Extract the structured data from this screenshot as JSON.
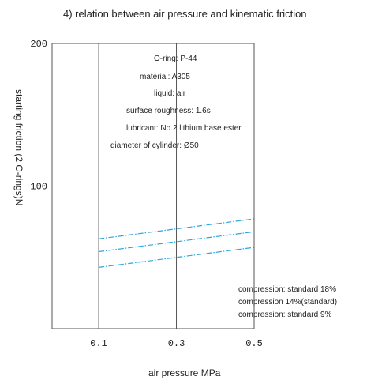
{
  "chart_data": {
    "type": "line",
    "title": "4) relation between air pressure and kinematic friction",
    "xlabel": "air pressure MPa",
    "ylabel": "starting friction (2 O-rings)N",
    "x_ticks": [
      "0.1",
      "0.3",
      "0.5"
    ],
    "y_ticks": [
      "200",
      "100"
    ],
    "xlim": [
      -0.02,
      0.5
    ],
    "ylim": [
      0,
      200
    ],
    "grid": true,
    "annotations": [
      "O-ring: P-44",
      "material: A305",
      "liquid: air",
      "surface roughness: 1.6s",
      "lubricant: No.2 lithium base ester",
      "diameter of cylinder: Ø50"
    ],
    "line_color": "#2aa7e0",
    "series": [
      {
        "name": "compression: standard 18%",
        "x": [
          0.1,
          0.5
        ],
        "values": [
          63,
          77
        ]
      },
      {
        "name": "compression 14%(standard)",
        "x": [
          0.1,
          0.5
        ],
        "values": [
          54,
          68
        ]
      },
      {
        "name": "compression: standard 9%",
        "x": [
          0.1,
          0.5
        ],
        "values": [
          43,
          57
        ]
      }
    ]
  }
}
